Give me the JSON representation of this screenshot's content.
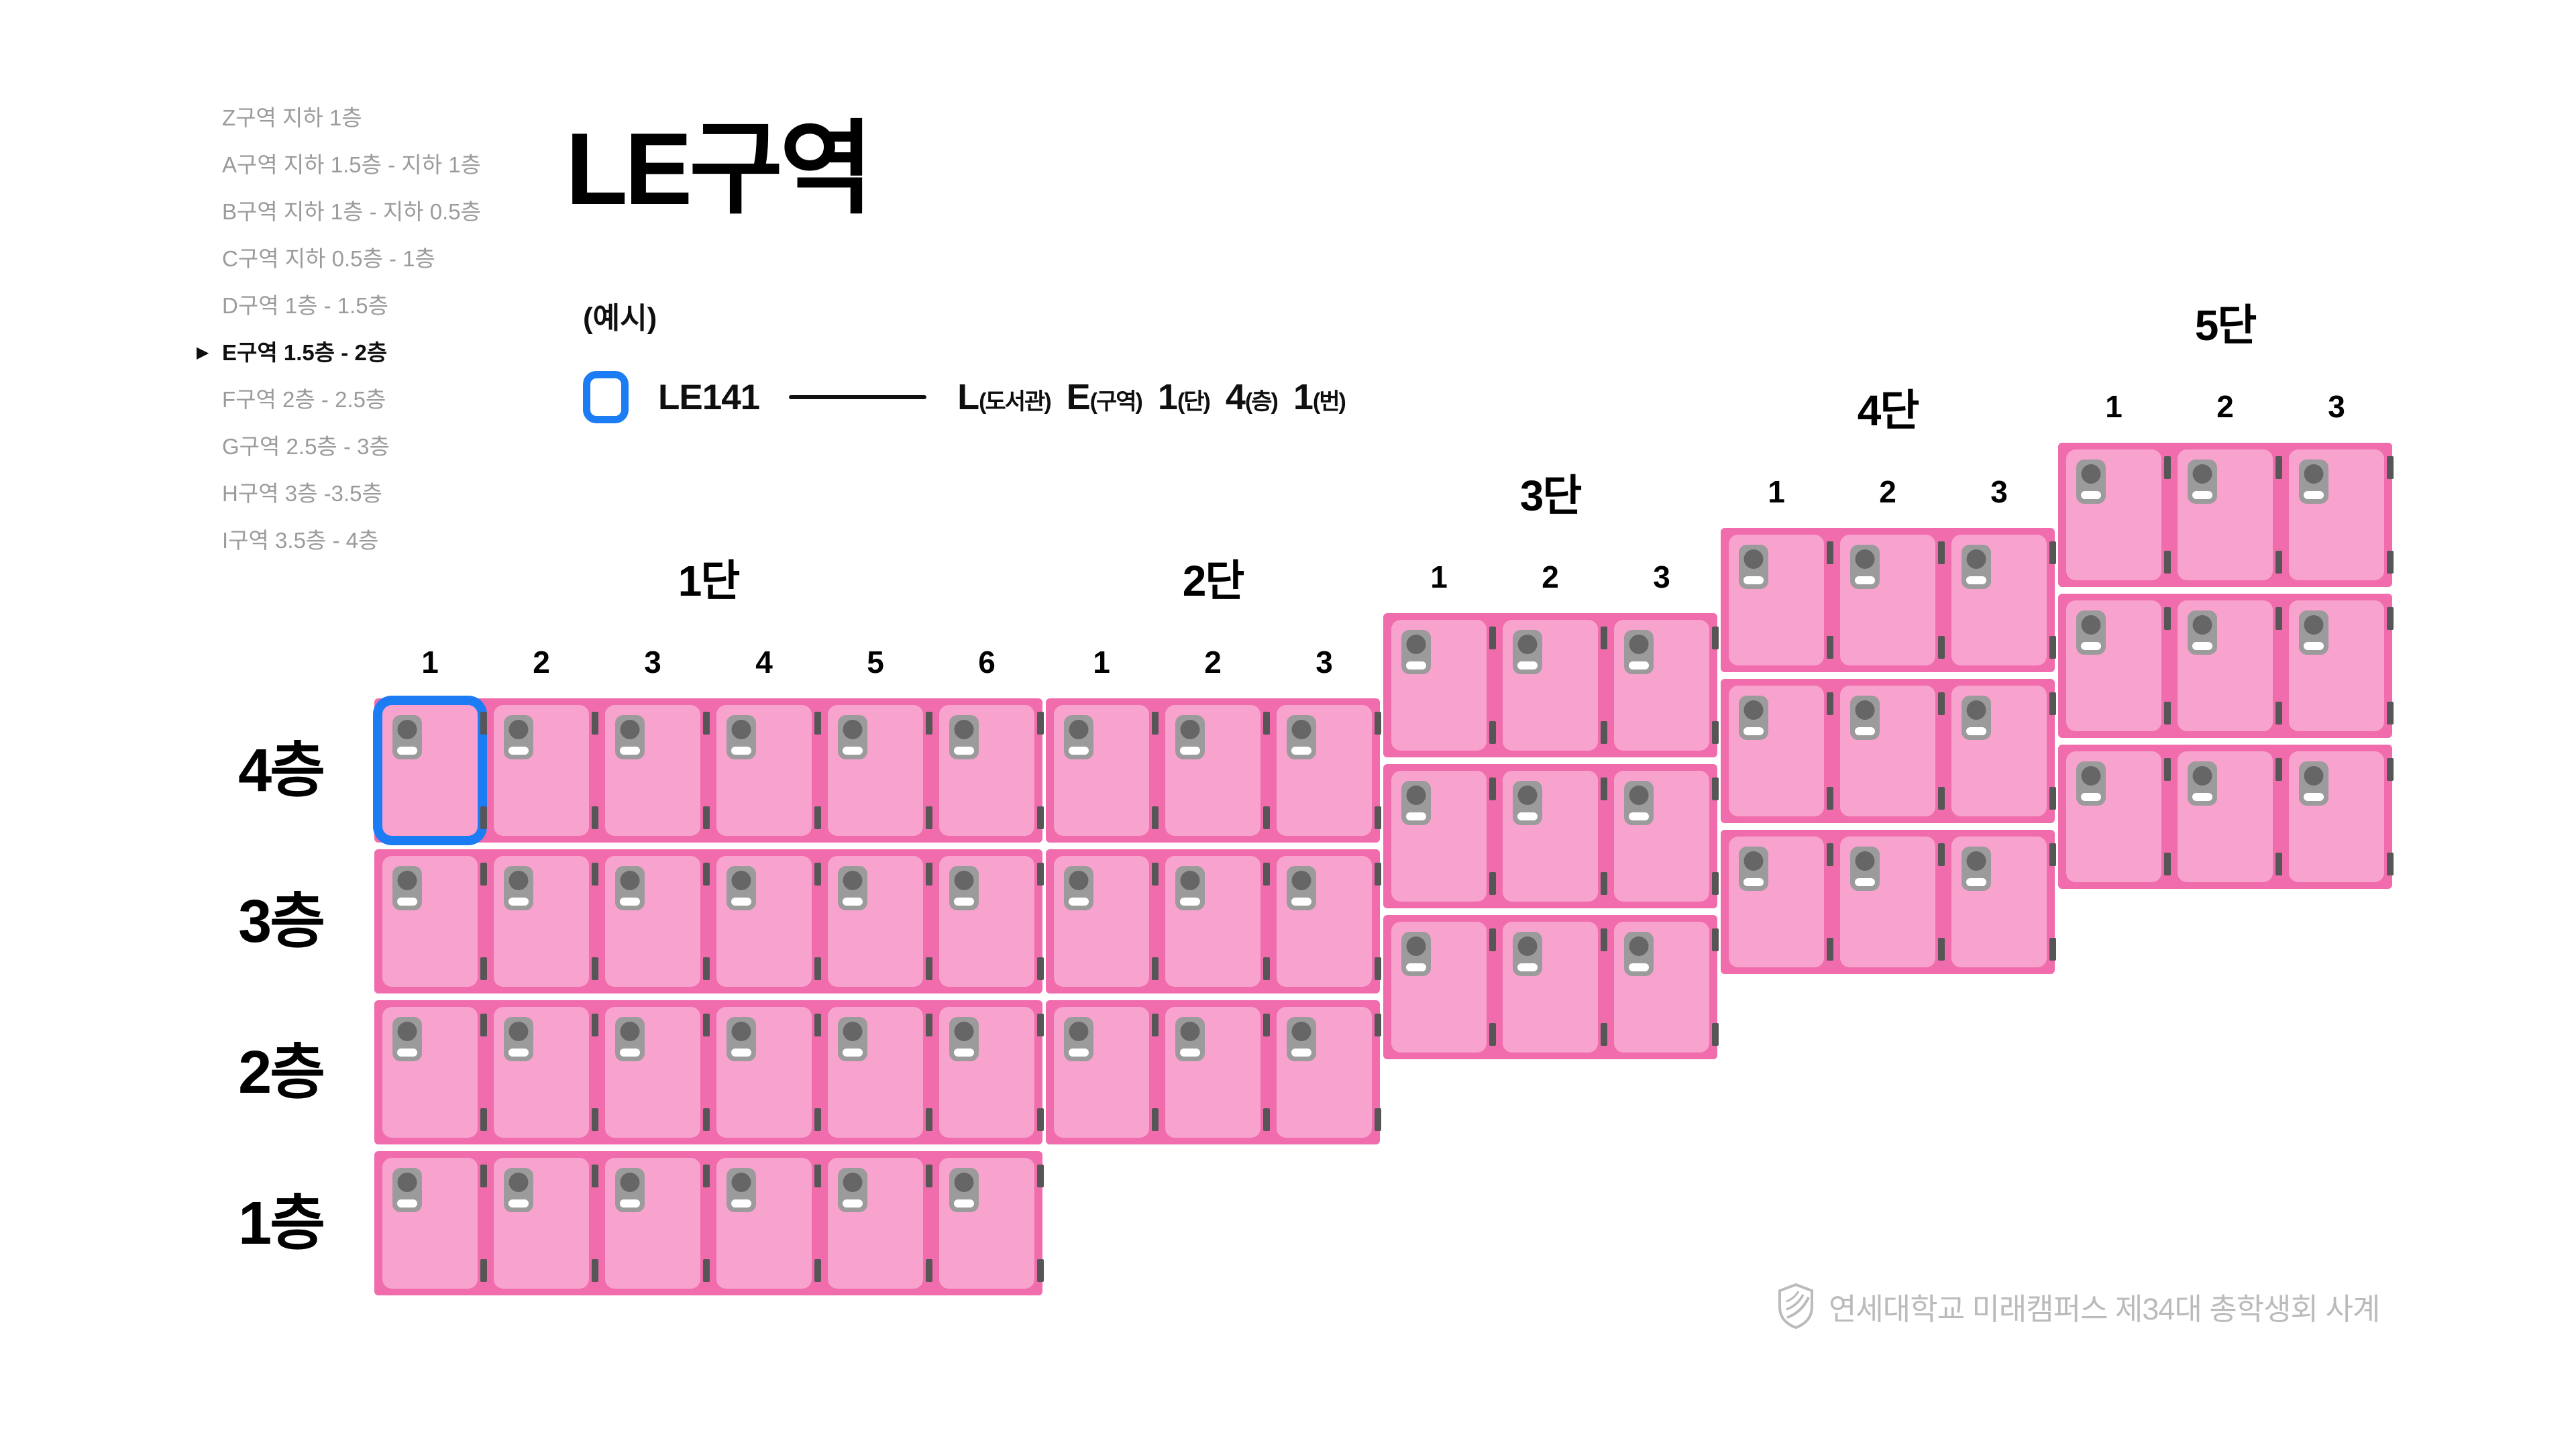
{
  "title": "LE구역",
  "sidebar": {
    "active_marker": "▶",
    "items": [
      {
        "label": "Z구역 지하 1층",
        "active": false
      },
      {
        "label": "A구역 지하 1.5층 - 지하 1층",
        "active": false
      },
      {
        "label": "B구역 지하 1층 - 지하 0.5층",
        "active": false
      },
      {
        "label": "C구역 지하 0.5층 - 1층",
        "active": false
      },
      {
        "label": "D구역 1층 - 1.5층",
        "active": false
      },
      {
        "label": "E구역 1.5층 - 2층",
        "active": true
      },
      {
        "label": "F구역 2층 - 2.5층",
        "active": false
      },
      {
        "label": "G구역 2.5층 - 3층",
        "active": false
      },
      {
        "label": "H구역 3층 -3.5층",
        "active": false
      },
      {
        "label": "I구역 3.5층 - 4층",
        "active": false
      }
    ]
  },
  "legend": {
    "example_label": "(예시)",
    "locker_code": "LE141",
    "formula": [
      {
        "big": "L",
        "small": "(도서관)"
      },
      {
        "big": "E",
        "small": "(구역)"
      },
      {
        "big": "1",
        "small": "(단)"
      },
      {
        "big": "4",
        "small": "(층)"
      },
      {
        "big": "1",
        "small": "(번)"
      }
    ]
  },
  "grid": {
    "floor_axis": [
      "4층",
      "3층",
      "2층",
      "1층"
    ],
    "sections": [
      {
        "name": "1단",
        "columns": [
          "1",
          "2",
          "3",
          "4",
          "5",
          "6"
        ],
        "rows": 4
      },
      {
        "name": "2단",
        "columns": [
          "1",
          "2",
          "3"
        ],
        "rows": 3
      },
      {
        "name": "3단",
        "columns": [
          "1",
          "2",
          "3"
        ],
        "rows": 3
      },
      {
        "name": "4단",
        "columns": [
          "1",
          "2",
          "3"
        ],
        "rows": 3
      },
      {
        "name": "5단",
        "columns": [
          "1",
          "2",
          "3"
        ],
        "rows": 3
      }
    ],
    "selected_locker": {
      "code": "LE141",
      "section": "1단",
      "floor": "4층",
      "column": "1"
    }
  },
  "footer": {
    "text": "연세대학교 미래캠퍼스 제34대 총학생회 사계"
  },
  "colors": {
    "locker_frame_pink": "#F06CAC",
    "locker_door_pink": "#F8A2CE",
    "selected_blue": "#1C7CF4",
    "handle_gray": "#9B9B9B",
    "hinge_gray": "#565656",
    "sidebar_gray": "#9B9B9B",
    "footer_gray": "#BBBBBB"
  }
}
